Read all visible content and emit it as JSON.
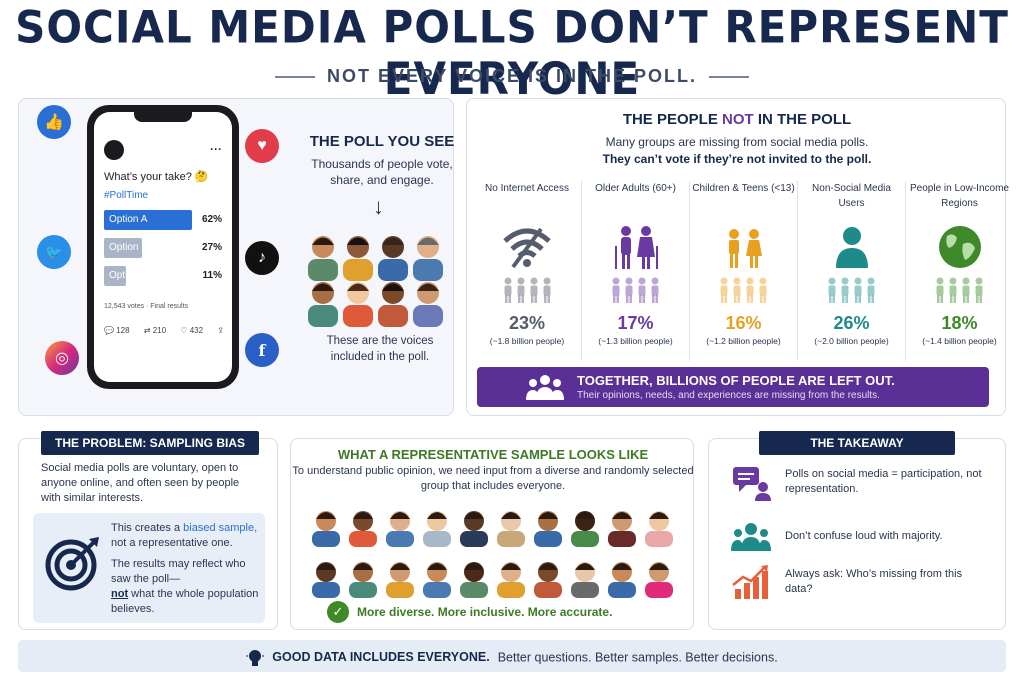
{
  "header": {
    "title": "SOCIAL MEDIA POLLS DON’T REPRESENT EVERYONE",
    "subtitle": "NOT EVERY VOICE IS IN THE POLL."
  },
  "phone": {
    "question": "What’s your take? 🤔",
    "hashtag": "#PollTime",
    "options": [
      {
        "label": "Option A",
        "pct": "62%",
        "value": 62,
        "color": "#2a6fd6"
      },
      {
        "label": "Option B",
        "pct": "27%",
        "value": 27,
        "color": "#a9b4c6"
      },
      {
        "label": "Option C",
        "pct": "11%",
        "value": 11,
        "color": "#a9b4c6"
      }
    ],
    "votes": "12,543 votes · Final results",
    "replies": "128",
    "reposts": "210",
    "likes": "432"
  },
  "poll_you_see": {
    "title": "THE POLL YOU SEE",
    "desc": "Thousands of people vote, share, and engage.",
    "caption": "These are the voices included in the poll."
  },
  "missing": {
    "title_pre": "THE PEOPLE ",
    "title_hl": "NOT",
    "title_post": " IN THE POLL",
    "desc": "Many groups are missing from social media polls.",
    "desc_bold": "They can’t vote if they’re not invited to the poll.",
    "groups": [
      {
        "name": "No Internet Access",
        "pct": "23%",
        "people": "(~1.8 billion people)",
        "color": "#555c6b",
        "icon": "no-wifi-icon"
      },
      {
        "name": "Older Adults (60+)",
        "pct": "17%",
        "people": "(~1.3 billion people)",
        "color": "#6a3aa0",
        "icon": "elderly-couple-icon"
      },
      {
        "name": "Children & Teens (<13)",
        "pct": "16%",
        "people": "(~1.2 billion people)",
        "color": "#e8a020",
        "icon": "children-icon"
      },
      {
        "name": "Non-Social Media Users",
        "pct": "26%",
        "people": "(~2.0 billion people)",
        "color": "#1f8a8a",
        "icon": "person-icon"
      },
      {
        "name": "People in Low-Income Regions",
        "pct": "18%",
        "people": "(~1.4 billion people)",
        "color": "#3e8a2a",
        "icon": "globe-icon"
      }
    ],
    "banner_title": "TOGETHER, BILLIONS OF PEOPLE ARE LEFT OUT.",
    "banner_sub": "Their opinions, needs, and experiences are missing from the results."
  },
  "problem": {
    "title": "THE PROBLEM: SAMPLING BIAS",
    "desc": "Social media polls are voluntary, open to anyone online, and often seen by people with similar interests.",
    "box_pre": "This creates a ",
    "box_blue": "biased sample,",
    "box_post": " not a representative one.",
    "result_pre": "The results may reflect who saw the poll—",
    "result_bold": "not",
    "result_post": " what the whole population believes."
  },
  "representative": {
    "title": "WHAT A REPRESENTATIVE SAMPLE LOOKS LIKE",
    "desc": "To understand public opinion, we need input from a diverse and randomly selected group that includes everyone.",
    "footer": "More diverse. More inclusive. More accurate."
  },
  "takeaway": {
    "title": "THE TAKEAWAY",
    "items": [
      "Polls on social media = participation, not representation.",
      "Don’t confuse loud with majority.",
      "Always ask: Who’s missing from this data?"
    ]
  },
  "footer": {
    "bold": "GOOD DATA INCLUDES EVERYONE.",
    "text": "Better questions. Better samples. Better decisions."
  }
}
